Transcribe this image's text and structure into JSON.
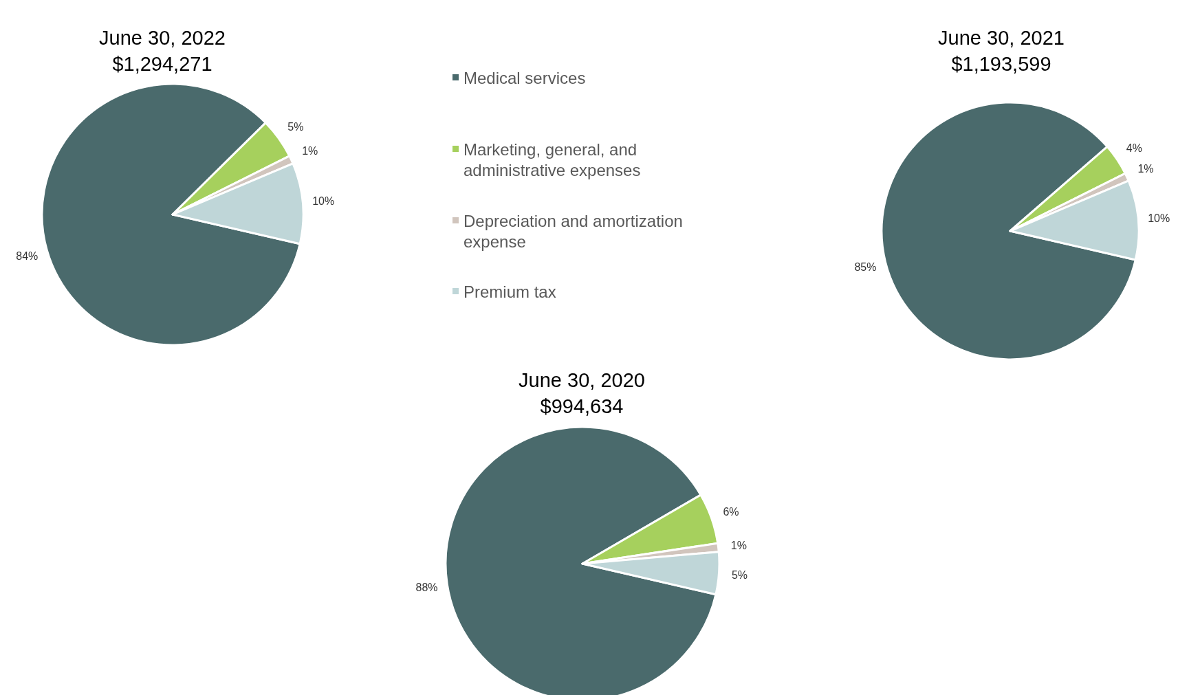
{
  "chart_data": [
    {
      "type": "pie",
      "title": "June 30, 2022",
      "subtitle": "$1,294,271",
      "categories": [
        "Medical services",
        "Marketing, general, and administrative expenses",
        "Depreciation and amortization expense",
        "Premium tax"
      ],
      "values": [
        84,
        5,
        1,
        10
      ],
      "colors": [
        "#4a6a6c",
        "#a6d05d",
        "#d1c5bd",
        "#bfd6d8"
      ],
      "value_labels": [
        "84%",
        "5%",
        "1%",
        "10%"
      ],
      "legend": "right"
    },
    {
      "type": "pie",
      "title": "June 30, 2021",
      "subtitle": "$1,193,599",
      "categories": [
        null,
        null,
        null,
        null
      ],
      "values": [
        85,
        4,
        1,
        10
      ],
      "colors": [
        "#4a6a6c",
        "#a6d05d",
        "#d1c5bd",
        "#bfd6d8"
      ],
      "value_labels": [
        "85%",
        "4%",
        "1%",
        "10%"
      ]
    },
    {
      "type": "pie",
      "title": "June 30, 2020",
      "subtitle": "$994,634",
      "categories": [
        null,
        null,
        null,
        null
      ],
      "values": [
        88,
        6,
        1,
        5
      ],
      "colors": [
        "#4a6a6c",
        "#a6d05d",
        "#d1c5bd",
        "#bfd6d8"
      ],
      "value_labels": [
        "88%",
        "6%",
        "1%",
        "5%"
      ]
    }
  ]
}
